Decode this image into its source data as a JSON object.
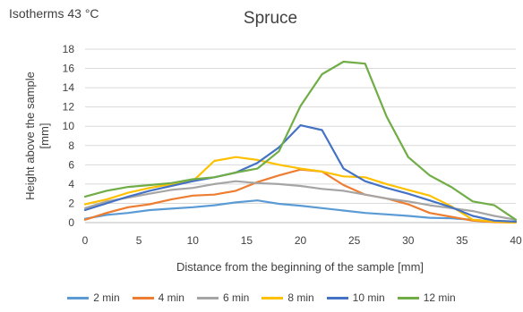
{
  "corner_label": "Isotherms 43 °C",
  "chart_data": {
    "type": "line",
    "title": "Spruce",
    "xlabel": "Distance from the beginning of the sample [mm]",
    "ylabel_line1": "Height above the sample",
    "ylabel_line2": "[mm]",
    "xlim": [
      0,
      40
    ],
    "ylim": [
      0,
      18
    ],
    "xticks": [
      0,
      5,
      10,
      15,
      20,
      25,
      30,
      35,
      40
    ],
    "yticks": [
      0,
      2,
      4,
      6,
      8,
      10,
      12,
      14,
      16,
      18
    ],
    "grid": "horizontal",
    "legend_position": "bottom",
    "series": [
      {
        "name": "2 min",
        "color": "#5B9BD5",
        "points": [
          [
            0,
            0.4
          ],
          [
            2,
            0.8
          ],
          [
            4,
            1.0
          ],
          [
            6,
            1.3
          ],
          [
            8,
            1.45
          ],
          [
            10,
            1.6
          ],
          [
            12,
            1.8
          ],
          [
            14,
            2.1
          ],
          [
            16,
            2.3
          ],
          [
            18,
            1.95
          ],
          [
            20,
            1.75
          ],
          [
            22,
            1.5
          ],
          [
            24,
            1.25
          ],
          [
            26,
            1.0
          ],
          [
            28,
            0.85
          ],
          [
            30,
            0.7
          ],
          [
            32,
            0.5
          ],
          [
            34,
            0.45
          ],
          [
            36,
            0.3
          ],
          [
            38,
            0.15
          ],
          [
            40,
            0.05
          ]
        ]
      },
      {
        "name": "4 min",
        "color": "#ED7D31",
        "points": [
          [
            0,
            0.3
          ],
          [
            2,
            1.0
          ],
          [
            4,
            1.6
          ],
          [
            6,
            1.9
          ],
          [
            8,
            2.4
          ],
          [
            10,
            2.8
          ],
          [
            12,
            2.9
          ],
          [
            14,
            3.3
          ],
          [
            16,
            4.2
          ],
          [
            18,
            4.9
          ],
          [
            20,
            5.5
          ],
          [
            22,
            5.3
          ],
          [
            24,
            3.9
          ],
          [
            26,
            2.9
          ],
          [
            28,
            2.5
          ],
          [
            30,
            1.9
          ],
          [
            32,
            1.0
          ],
          [
            34,
            0.6
          ],
          [
            36,
            0.2
          ],
          [
            38,
            0.05
          ],
          [
            40,
            0.0
          ]
        ]
      },
      {
        "name": "6 min",
        "color": "#A5A5A5",
        "points": [
          [
            0,
            1.5
          ],
          [
            2,
            2.2
          ],
          [
            4,
            2.6
          ],
          [
            6,
            3.0
          ],
          [
            8,
            3.4
          ],
          [
            10,
            3.6
          ],
          [
            12,
            4.0
          ],
          [
            14,
            4.3
          ],
          [
            16,
            4.1
          ],
          [
            18,
            4.0
          ],
          [
            20,
            3.8
          ],
          [
            22,
            3.5
          ],
          [
            24,
            3.3
          ],
          [
            26,
            2.9
          ],
          [
            28,
            2.5
          ],
          [
            30,
            2.2
          ],
          [
            32,
            1.8
          ],
          [
            34,
            1.5
          ],
          [
            36,
            1.2
          ],
          [
            38,
            0.7
          ],
          [
            40,
            0.3
          ]
        ]
      },
      {
        "name": "8 min",
        "color": "#FFC000",
        "points": [
          [
            0,
            1.9
          ],
          [
            2,
            2.4
          ],
          [
            4,
            3.1
          ],
          [
            6,
            3.6
          ],
          [
            8,
            4.0
          ],
          [
            10,
            4.3
          ],
          [
            12,
            6.4
          ],
          [
            14,
            6.8
          ],
          [
            16,
            6.5
          ],
          [
            18,
            6.0
          ],
          [
            20,
            5.6
          ],
          [
            22,
            5.3
          ],
          [
            24,
            4.8
          ],
          [
            26,
            4.7
          ],
          [
            28,
            4.0
          ],
          [
            30,
            3.4
          ],
          [
            32,
            2.8
          ],
          [
            34,
            1.7
          ],
          [
            36,
            0.3
          ],
          [
            38,
            0.1
          ],
          [
            40,
            0.0
          ]
        ]
      },
      {
        "name": "10 min",
        "color": "#4472C4",
        "points": [
          [
            0,
            1.3
          ],
          [
            2,
            2.0
          ],
          [
            4,
            2.7
          ],
          [
            6,
            3.3
          ],
          [
            8,
            3.8
          ],
          [
            10,
            4.3
          ],
          [
            12,
            4.7
          ],
          [
            14,
            5.2
          ],
          [
            16,
            6.2
          ],
          [
            18,
            7.8
          ],
          [
            20,
            10.1
          ],
          [
            22,
            9.6
          ],
          [
            24,
            5.6
          ],
          [
            26,
            4.3
          ],
          [
            28,
            3.6
          ],
          [
            30,
            3.0
          ],
          [
            32,
            2.3
          ],
          [
            34,
            1.6
          ],
          [
            36,
            0.7
          ],
          [
            38,
            0.2
          ],
          [
            40,
            0.1
          ]
        ]
      },
      {
        "name": "12 min",
        "color": "#70AD47",
        "points": [
          [
            0,
            2.7
          ],
          [
            2,
            3.3
          ],
          [
            4,
            3.7
          ],
          [
            6,
            3.9
          ],
          [
            8,
            4.1
          ],
          [
            10,
            4.5
          ],
          [
            12,
            4.7
          ],
          [
            14,
            5.2
          ],
          [
            16,
            5.6
          ],
          [
            18,
            7.4
          ],
          [
            20,
            12.1
          ],
          [
            22,
            15.4
          ],
          [
            24,
            16.7
          ],
          [
            26,
            16.5
          ],
          [
            28,
            11.0
          ],
          [
            30,
            6.8
          ],
          [
            32,
            4.9
          ],
          [
            34,
            3.7
          ],
          [
            36,
            2.2
          ],
          [
            38,
            1.8
          ],
          [
            40,
            0.3
          ]
        ]
      }
    ]
  }
}
